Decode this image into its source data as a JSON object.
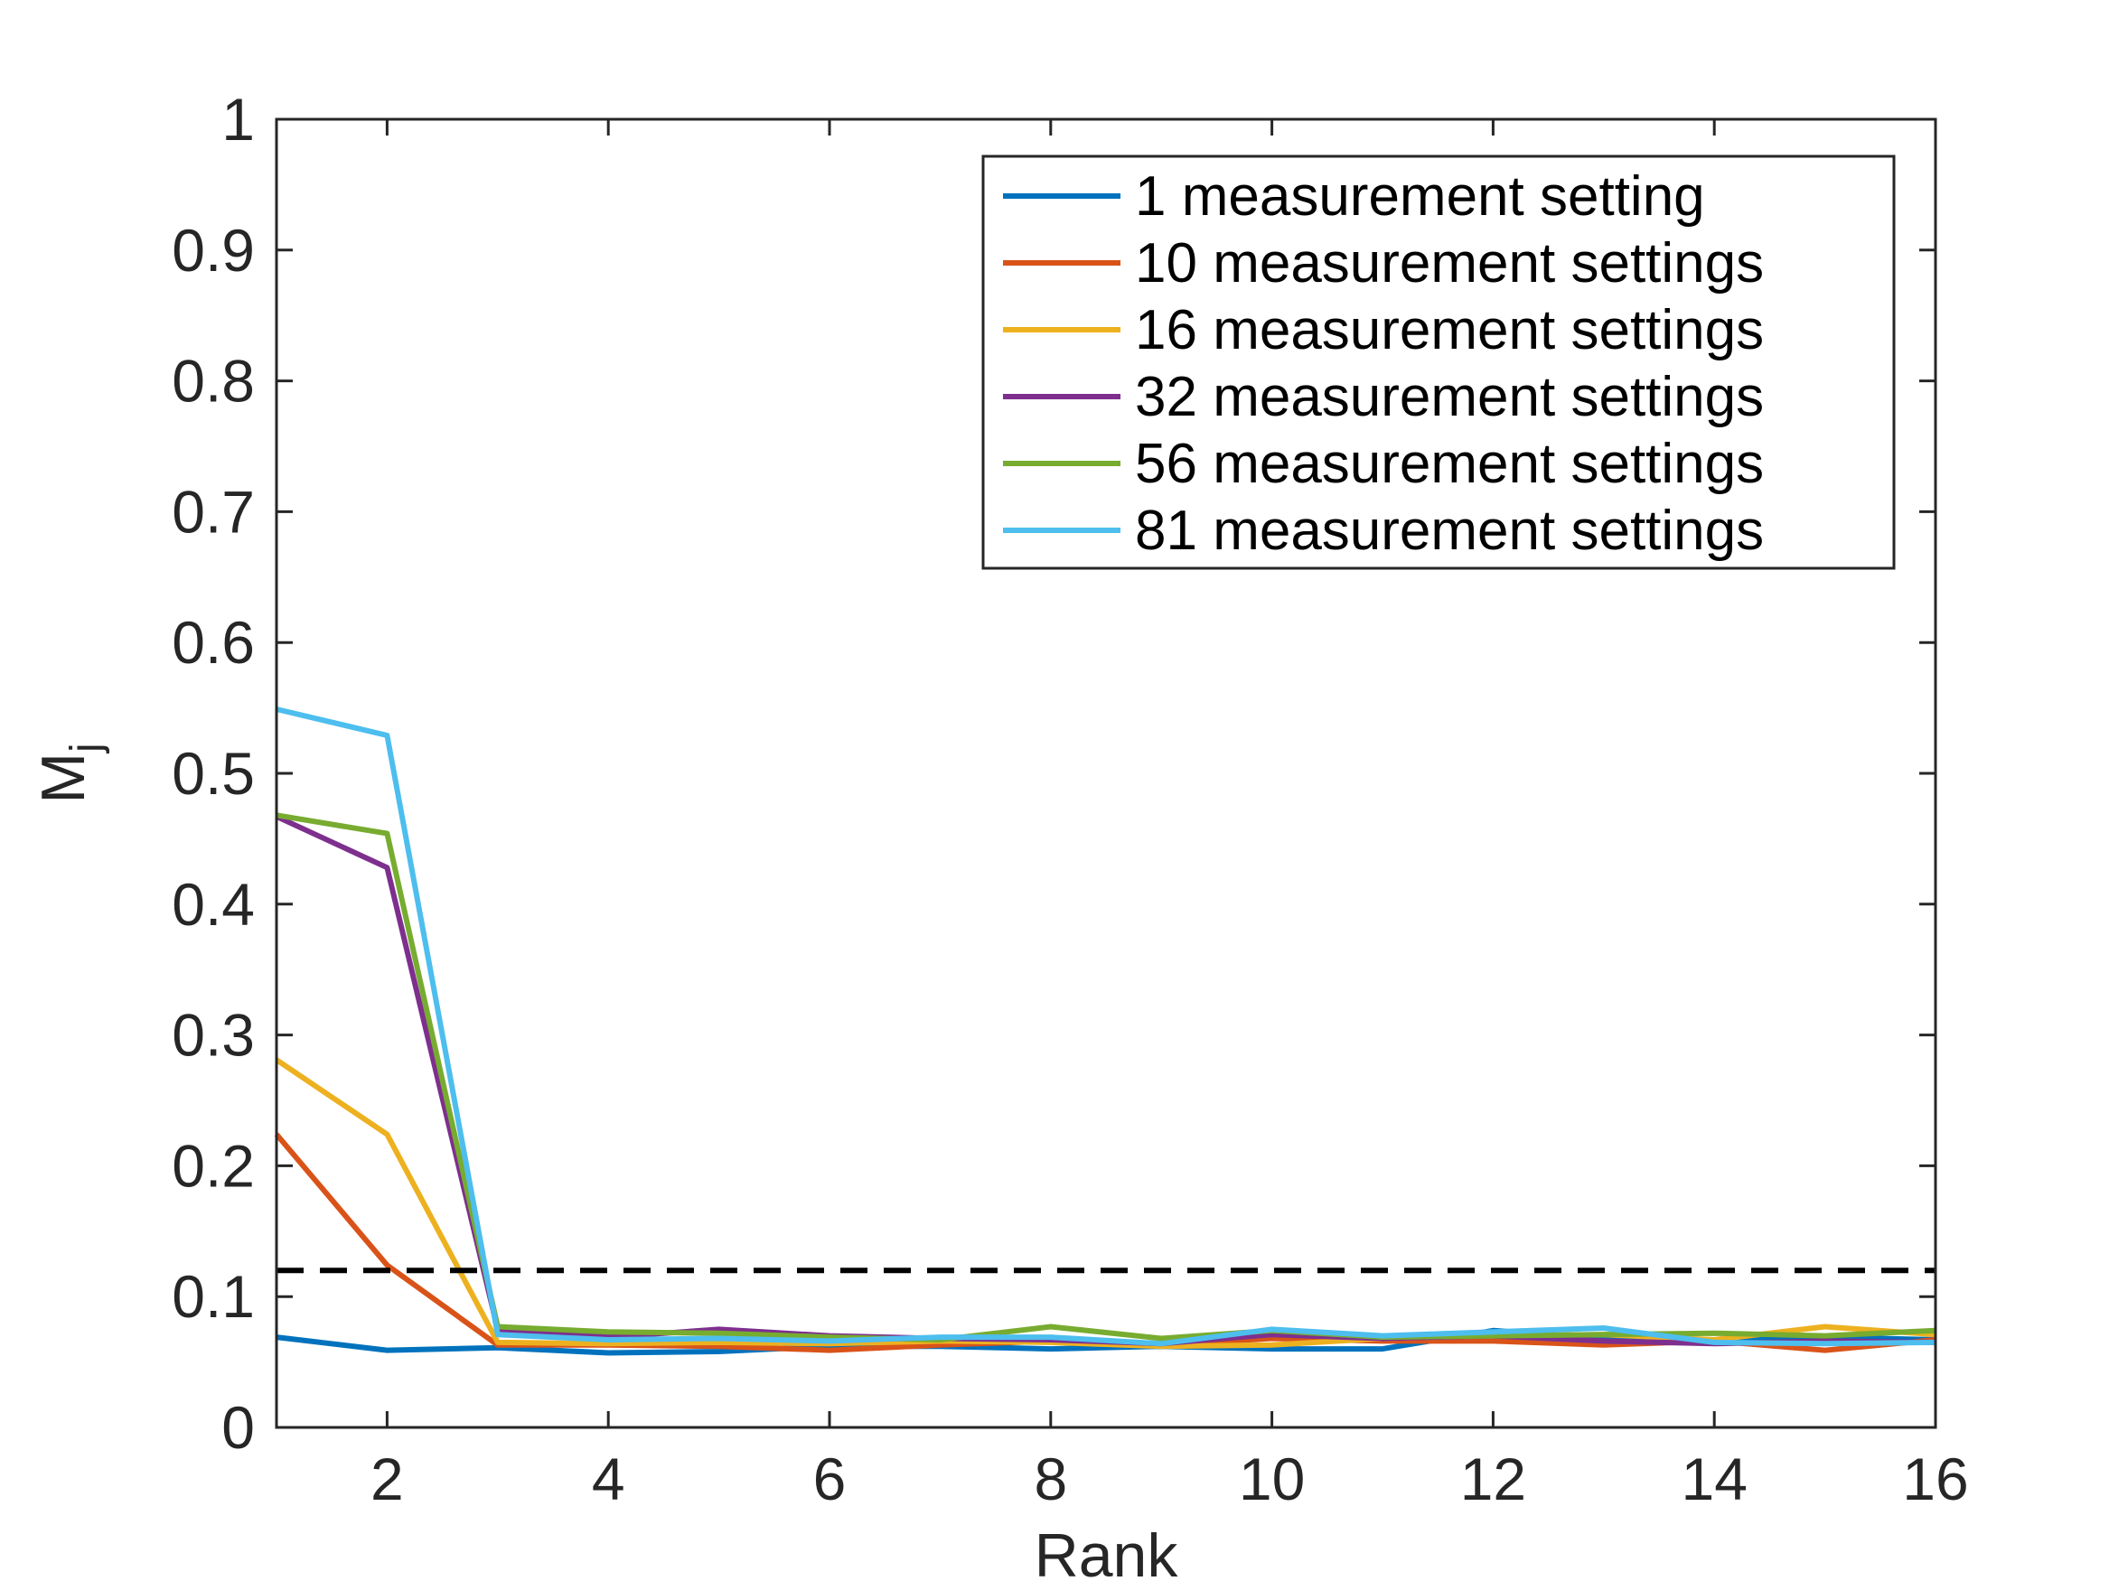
{
  "chart_data": {
    "type": "line",
    "title": "",
    "xlabel": "Rank",
    "ylabel": "M",
    "ylabel_subscript": "j",
    "xlim": [
      1,
      16
    ],
    "ylim": [
      0,
      1
    ],
    "xticks": [
      2,
      4,
      6,
      8,
      10,
      12,
      14,
      16
    ],
    "xtick_labels": [
      "2",
      "4",
      "6",
      "8",
      "10",
      "12",
      "14",
      "16"
    ],
    "yticks": [
      0,
      0.1,
      0.2,
      0.3,
      0.4,
      0.5,
      0.6,
      0.7,
      0.8,
      0.9,
      1
    ],
    "ytick_labels": [
      "0",
      "0.1",
      "0.2",
      "0.3",
      "0.4",
      "0.5",
      "0.6",
      "0.7",
      "0.8",
      "0.9",
      "1"
    ],
    "grid": false,
    "legend_position": "top-right",
    "x": [
      1,
      2,
      3,
      4,
      5,
      6,
      7,
      8,
      9,
      10,
      11,
      12,
      13,
      14,
      15,
      16
    ],
    "series": [
      {
        "name": "1 measurement setting",
        "color": "#0072BD",
        "values": [
          0.069,
          0.059,
          0.061,
          0.057,
          0.058,
          0.062,
          0.062,
          0.06,
          0.062,
          0.06,
          0.06,
          0.074,
          0.068,
          0.066,
          0.069,
          0.067
        ]
      },
      {
        "name": "10 measurement settings",
        "color": "#D95319",
        "values": [
          0.224,
          0.124,
          0.063,
          0.063,
          0.062,
          0.059,
          0.063,
          0.066,
          0.063,
          0.068,
          0.066,
          0.066,
          0.063,
          0.066,
          0.059,
          0.067
        ]
      },
      {
        "name": "16 measurement settings",
        "color": "#EDB120",
        "values": [
          0.281,
          0.224,
          0.065,
          0.064,
          0.065,
          0.064,
          0.066,
          0.065,
          0.062,
          0.063,
          0.068,
          0.07,
          0.071,
          0.067,
          0.077,
          0.071
        ]
      },
      {
        "name": "32 measurement settings",
        "color": "#7E2F8E",
        "values": [
          0.467,
          0.428,
          0.075,
          0.069,
          0.075,
          0.07,
          0.068,
          0.067,
          0.064,
          0.071,
          0.068,
          0.07,
          0.066,
          0.064,
          0.066,
          0.065
        ]
      },
      {
        "name": "56 measurement settings",
        "color": "#77AC30",
        "values": [
          0.468,
          0.454,
          0.077,
          0.073,
          0.072,
          0.069,
          0.067,
          0.077,
          0.068,
          0.074,
          0.069,
          0.07,
          0.071,
          0.072,
          0.07,
          0.074
        ]
      },
      {
        "name": "81 measurement settings",
        "color": "#4DBEEE",
        "values": [
          0.549,
          0.529,
          0.071,
          0.067,
          0.068,
          0.066,
          0.069,
          0.069,
          0.064,
          0.075,
          0.07,
          0.073,
          0.076,
          0.065,
          0.064,
          0.065
        ]
      }
    ],
    "reference_line": {
      "y": 0.12,
      "style": "dashed",
      "color": "#000000"
    }
  }
}
